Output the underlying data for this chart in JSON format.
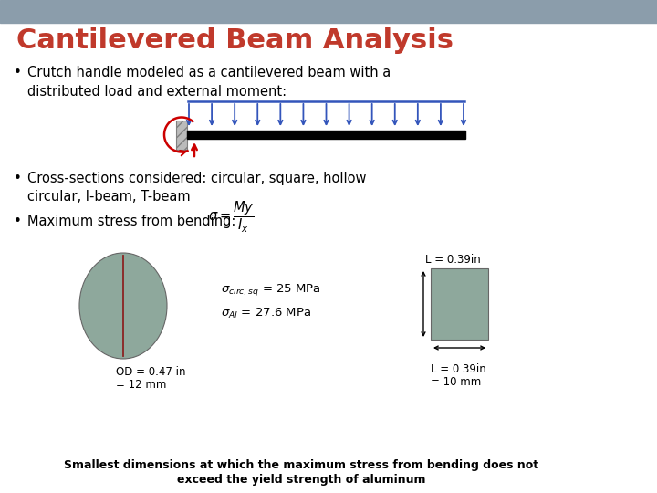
{
  "title": "Cantilevered Beam Analysis",
  "title_color": "#C0392B",
  "background_color": "#FFFFFF",
  "header_bar_color": "#8B9DAB",
  "bullet1_line1": "Crutch handle modeled as a cantilevered beam with a",
  "bullet1_line2": "distributed load and external moment:",
  "bullet2_line1": "Cross-sections considered: circular, square, hollow",
  "bullet2_line2": "circular, I-beam, T-beam",
  "bullet3": "Maximum stress from bending: ",
  "formula": "$\\sigma = \\dfrac{My}{I_x}$",
  "circ_label_line1": "OD = 0.47 in",
  "circ_label_line2": "= 12 mm",
  "stress_circ_sq": "$\\sigma_{circ,sq}$ = 25 MPa",
  "stress_al": "$\\sigma_{Al}$ = 27.6 MPa",
  "sq_label_top": "L = 0.39in",
  "sq_label_bot_line1": "L = 0.39in",
  "sq_label_bot_line2": "= 10 mm",
  "footer_line1": "Smallest dimensions at which the maximum stress from bending does not",
  "footer_line2": "exceed the yield strength of aluminum",
  "circ_color": "#8EA89C",
  "sq_color": "#8EA89C",
  "arrow_color": "#CC0000",
  "load_arrow_color": "#3355BB",
  "moment_arc_color": "#CC0000",
  "wall_color": "#BBBBBB",
  "beam_color": "#000000"
}
